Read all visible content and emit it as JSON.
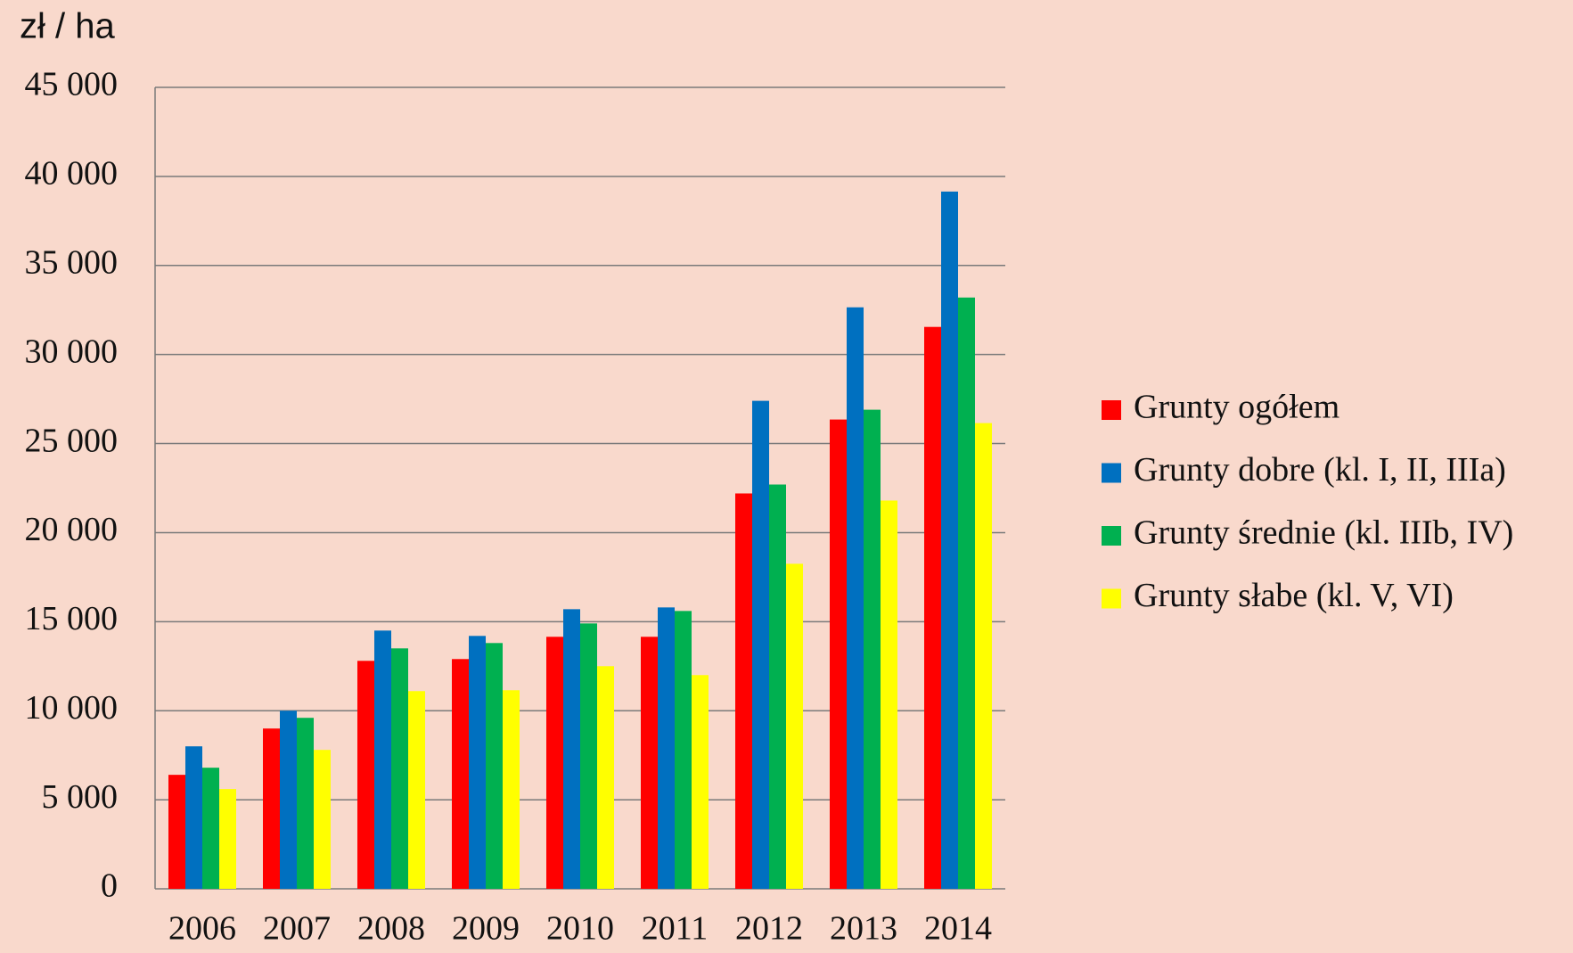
{
  "chart_data": {
    "type": "bar",
    "y_axis_label": "zł / ha",
    "categories": [
      "2006",
      "2007",
      "2008",
      "2009",
      "2010",
      "2011",
      "2012",
      "2013",
      "2014"
    ],
    "series": [
      {
        "name": "Grunty ogółem",
        "color": "#ff0000",
        "values": [
          6400,
          9000,
          12800,
          12900,
          14150,
          14150,
          22200,
          26350,
          31550
        ]
      },
      {
        "name": "Grunty dobre (kl. I, II, IIIa)",
        "color": "#0070c0",
        "values": [
          8000,
          10000,
          14500,
          14200,
          15700,
          15800,
          27400,
          32650,
          39150
        ]
      },
      {
        "name": "Grunty średnie (kl. IIIb, IV)",
        "color": "#00b050",
        "values": [
          6800,
          9600,
          13500,
          13800,
          14900,
          15600,
          22700,
          26900,
          33200
        ]
      },
      {
        "name": "Grunty słabe (kl. V, VI)",
        "color": "#ffff00",
        "values": [
          5600,
          7800,
          11100,
          11150,
          12500,
          12000,
          18250,
          21800,
          26150
        ]
      }
    ],
    "ylim": [
      0,
      45000
    ],
    "yticks": [
      0,
      {
        "value": 5000,
        "label": "5 000"
      },
      {
        "value": 10000,
        "label": "10 000"
      },
      {
        "value": 15000,
        "label": "15 000"
      },
      {
        "value": 20000,
        "label": "20 000"
      },
      {
        "value": 25000,
        "label": "25 000"
      },
      {
        "value": 30000,
        "label": "30 000"
      },
      {
        "value": 35000,
        "label": "35 000"
      },
      {
        "value": 40000,
        "label": "40 000"
      },
      {
        "value": 45000,
        "label": "45 000"
      }
    ],
    "grid": true,
    "legend": "right"
  }
}
